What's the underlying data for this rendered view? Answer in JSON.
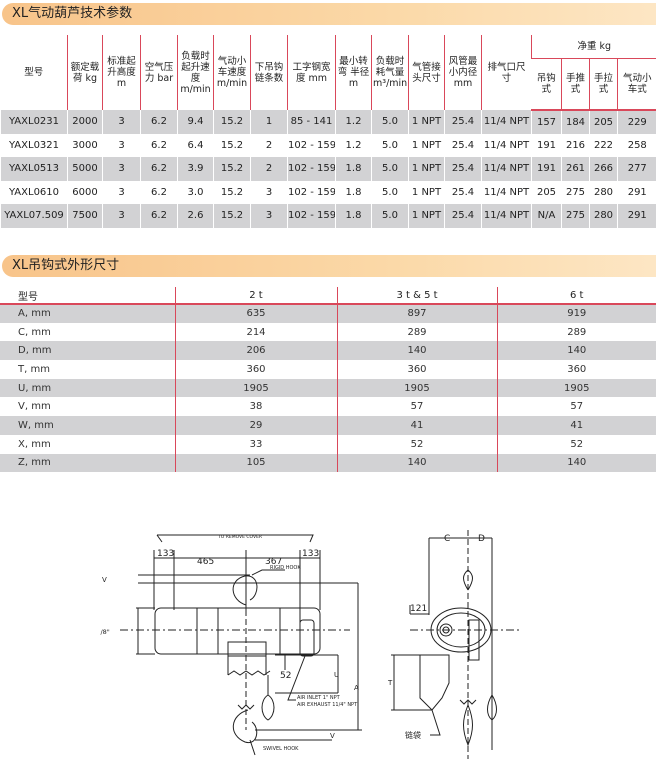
{
  "spec_section": {
    "title": "XL气动葫芦技术参数",
    "headers": [
      "型号",
      "额定载荷 kg",
      "标准起升高度 m",
      "空气压力 bar",
      "负载时起升速度 m/min",
      "气动小车速度 m/min",
      "下吊钩链条数",
      "工字钢宽度 mm",
      "最小转弯 半径 m",
      "负载时耗气量 m³/min",
      "气管接头尺寸",
      "风管最小内径 mm",
      "排气口尺寸"
    ],
    "net_weight_header": "净重 kg",
    "net_weight_subheaders": [
      "吊钩式",
      "手推式",
      "手拉式",
      "气动小车式"
    ],
    "rows": [
      [
        "YAXL0231",
        "2000",
        "3",
        "6.2",
        "9.4",
        "15.2",
        "1",
        "85 - 141",
        "1.2",
        "5.0",
        "1 NPT",
        "25.4",
        "11/4 NPT",
        "157",
        "184",
        "205",
        "229"
      ],
      [
        "YAXL0321",
        "3000",
        "3",
        "6.2",
        "6.4",
        "15.2",
        "2",
        "102 - 159",
        "1.2",
        "5.0",
        "1 NPT",
        "25.4",
        "11/4 NPT",
        "191",
        "216",
        "222",
        "258"
      ],
      [
        "YAXL0513",
        "5000",
        "3",
        "6.2",
        "3.9",
        "15.2",
        "2",
        "102 - 159",
        "1.8",
        "5.0",
        "1 NPT",
        "25.4",
        "11/4 NPT",
        "191",
        "261",
        "266",
        "277"
      ],
      [
        "YAXL0610",
        "6000",
        "3",
        "6.2",
        "3.0",
        "15.2",
        "3",
        "102 - 159",
        "1.8",
        "5.0",
        "1 NPT",
        "25.4",
        "11/4 NPT",
        "205",
        "275",
        "280",
        "291"
      ],
      [
        "YAXL07.509",
        "7500",
        "3",
        "6.2",
        "2.6",
        "15.2",
        "3",
        "102 - 159",
        "1.8",
        "5.0",
        "1 NPT",
        "25.4",
        "11/4 NPT",
        "N/A",
        "275",
        "280",
        "291"
      ]
    ]
  },
  "dim_section": {
    "title": "XL吊钩式外形尺寸",
    "headers": [
      "型号",
      "2 t",
      "3 t & 5 t",
      "6 t"
    ],
    "rows": [
      [
        "A, mm",
        "635",
        "897",
        "919"
      ],
      [
        "C, mm",
        "214",
        "289",
        "289"
      ],
      [
        "D, mm",
        "206",
        "140",
        "140"
      ],
      [
        "T, mm",
        "360",
        "360",
        "360"
      ],
      [
        "U, mm",
        "1905",
        "1905",
        "1905"
      ],
      [
        "V, mm",
        "38",
        "57",
        "57"
      ],
      [
        "W, mm",
        "29",
        "41",
        "41"
      ],
      [
        "X, mm",
        "33",
        "52",
        "52"
      ],
      [
        "Z, mm",
        "105",
        "140",
        "140"
      ]
    ]
  },
  "drawing": {
    "dims": {
      "d133a": "133",
      "d465": "465",
      "d367": "367",
      "d133b": "133",
      "d12": "12 3/8\"",
      "d52": "52",
      "d121": "121",
      "C": "C",
      "D": "D",
      "U": "U",
      "A": "A",
      "T": "T",
      "V": "V"
    },
    "labels": {
      "cover": "TO REMOVE COVER",
      "rigid": "RIGID HOOK",
      "swivel": "SWIVEL HOOK",
      "inlet": "AIR INLET 1\" NPT",
      "exhaust": "AIR EXHAUST 11/4\" NPT",
      "bag": "链袋"
    }
  },
  "colors": {
    "accent_line": "#d9485a",
    "title_bar": "#f8c48a",
    "row_shade": "#d2d2d4"
  }
}
